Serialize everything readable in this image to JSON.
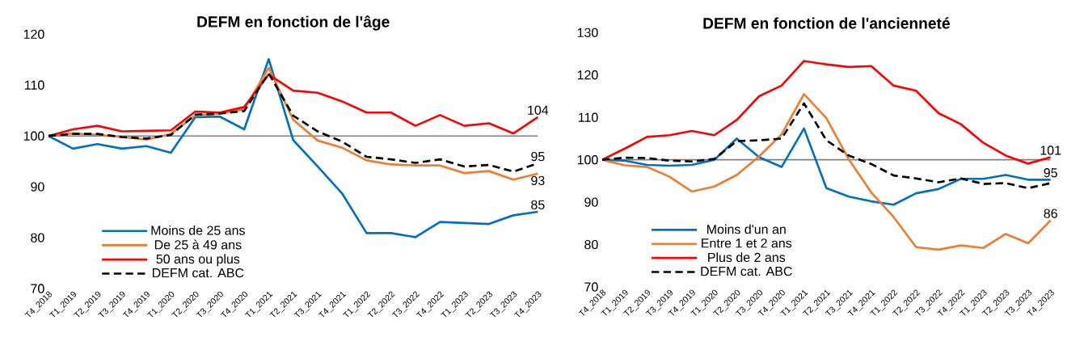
{
  "chart_data": [
    {
      "type": "line",
      "title": "DEFM en fonction de l'âge",
      "categories": [
        "T4_2018",
        "T1_2019",
        "T2_2019",
        "T3_2019",
        "T4_2019",
        "T1_2020",
        "T2_2020",
        "T3_2020",
        "T4_2020",
        "T1_2021",
        "T2_2021",
        "T3_2021",
        "T4_2021",
        "T1_2022",
        "T2_2022",
        "T3_2022",
        "T4_2022",
        "T1_2023",
        "T2_2023",
        "T3_2023",
        "T4_2023"
      ],
      "series": [
        {
          "name": "Moins de 25 ans",
          "color": "#0070c0",
          "line_style": "solid",
          "values": [
            100,
            97.5,
            98.4,
            97.5,
            98.0,
            96.7,
            103.7,
            103.8,
            101.3,
            115.1,
            99.2,
            94.0,
            88.7,
            80.9,
            80.9,
            80.1,
            83.1,
            82.9,
            82.7,
            84.4,
            85.1
          ],
          "value_labels": [
            null,
            null,
            null,
            null,
            null,
            null,
            null,
            null,
            null,
            null,
            null,
            null,
            null,
            null,
            null,
            null,
            null,
            null,
            null,
            null,
            "85"
          ]
        },
        {
          "name": "De 25 à 49 ans",
          "color": "#ed7d31",
          "line_style": "solid",
          "values": [
            100,
            100.5,
            100.2,
            99.8,
            99.3,
            100.4,
            104.0,
            104.4,
            105.3,
            113.4,
            103.2,
            99.1,
            97.7,
            95.2,
            94.4,
            94.2,
            94.2,
            92.7,
            93.1,
            91.4,
            92.6
          ],
          "value_labels": [
            null,
            null,
            null,
            null,
            null,
            null,
            null,
            null,
            null,
            null,
            null,
            null,
            null,
            null,
            null,
            null,
            null,
            null,
            null,
            null,
            "93"
          ]
        },
        {
          "name": "50 ans ou plus",
          "color": "#ff0000",
          "line_style": "solid",
          "values": [
            100,
            101.3,
            102.0,
            100.9,
            101.0,
            101.1,
            104.8,
            104.6,
            105.7,
            112.1,
            108.9,
            108.5,
            106.8,
            104.6,
            104.6,
            102.0,
            104.1,
            102.0,
            102.5,
            100.5,
            103.7
          ],
          "value_labels": [
            null,
            null,
            null,
            null,
            null,
            null,
            null,
            null,
            null,
            null,
            null,
            null,
            null,
            null,
            null,
            null,
            null,
            null,
            null,
            null,
            "104"
          ]
        },
        {
          "name": "DEFM cat. ABC",
          "color": "#000000",
          "line_style": "dashed",
          "values": [
            100,
            100.4,
            100.4,
            99.8,
            99.5,
            100.2,
            104.2,
            104.4,
            104.9,
            112.3,
            104.0,
            100.9,
            98.9,
            95.9,
            95.4,
            94.7,
            95.4,
            94.0,
            94.3,
            93.0,
            94.6
          ],
          "value_labels": [
            null,
            null,
            null,
            null,
            null,
            null,
            null,
            null,
            null,
            null,
            null,
            null,
            null,
            null,
            null,
            null,
            null,
            null,
            null,
            null,
            "95"
          ]
        }
      ],
      "ylim": [
        70,
        120
      ],
      "yticks": [
        70,
        80,
        90,
        100,
        110,
        120
      ],
      "ref_lines": [
        {
          "axis": "y",
          "value": 100,
          "color": "#808080"
        }
      ],
      "legend": "bottom left",
      "grid": false
    },
    {
      "type": "line",
      "title": "DEFM en fonction de l'ancienneté",
      "categories": [
        "T4_2018",
        "T1_2019",
        "T2_2019",
        "T3_2019",
        "T4_2019",
        "T1_2020",
        "T2_2020",
        "T3_2020",
        "T4_2020",
        "T1_2021",
        "T2_2021",
        "T3_2021",
        "T4_2021",
        "T1_2022",
        "T2_2022",
        "T3_2022",
        "T4_2022",
        "T1_2023",
        "T2_2023",
        "T3_2023",
        "T4_2023"
      ],
      "series": [
        {
          "name": "Moins d'un an",
          "color": "#0070c0",
          "line_style": "solid",
          "values": [
            100,
            99.8,
            98.8,
            98.6,
            98.8,
            100,
            105.0,
            100.6,
            98.3,
            107.4,
            93.3,
            91.3,
            90.2,
            89.4,
            92.1,
            93.1,
            95.5,
            95.5,
            96.4,
            95.3,
            95.3
          ],
          "value_labels": [
            null,
            null,
            null,
            null,
            null,
            null,
            null,
            null,
            null,
            null,
            null,
            null,
            null,
            null,
            null,
            null,
            null,
            null,
            null,
            null,
            "95"
          ]
        },
        {
          "name": "Entre 1 et 2 ans",
          "color": "#ed7d31",
          "line_style": "solid",
          "values": [
            100,
            98.7,
            98.3,
            96.0,
            92.5,
            93.7,
            96.4,
            100.8,
            106.0,
            115.5,
            109.8,
            100.1,
            92.3,
            86.5,
            79.4,
            78.8,
            79.8,
            79.2,
            82.5,
            80.3,
            85.7
          ],
          "value_labels": [
            null,
            null,
            null,
            null,
            null,
            null,
            null,
            null,
            null,
            null,
            null,
            null,
            null,
            null,
            null,
            null,
            null,
            null,
            null,
            null,
            "86"
          ]
        },
        {
          "name": "Plus de 2 ans",
          "color": "#ff0000",
          "line_style": "solid",
          "values": [
            100,
            102.6,
            105.4,
            105.8,
            106.8,
            105.8,
            109.4,
            115.0,
            117.5,
            123.3,
            122.5,
            121.9,
            122.1,
            117.5,
            116.3,
            111.0,
            108.4,
            104.0,
            101.0,
            99.1,
            100.6
          ],
          "value_labels": [
            null,
            null,
            null,
            null,
            null,
            null,
            null,
            null,
            null,
            null,
            null,
            null,
            null,
            null,
            null,
            null,
            null,
            null,
            null,
            null,
            "101"
          ]
        },
        {
          "name": "DEFM cat. ABC",
          "color": "#000000",
          "line_style": "dashed",
          "values": [
            100,
            100.5,
            100.4,
            99.8,
            99.6,
            100.2,
            104.4,
            104.6,
            105.0,
            113.3,
            104.6,
            101.0,
            99.0,
            96.3,
            95.6,
            94.7,
            95.6,
            94.3,
            94.5,
            93.3,
            94.5
          ]
        }
      ],
      "ylim": [
        70,
        130
      ],
      "yticks": [
        70,
        80,
        90,
        100,
        110,
        120,
        130
      ],
      "ref_lines": [
        {
          "axis": "y",
          "value": 100,
          "color": "#808080"
        }
      ],
      "legend": "bottom left",
      "grid": false
    }
  ]
}
